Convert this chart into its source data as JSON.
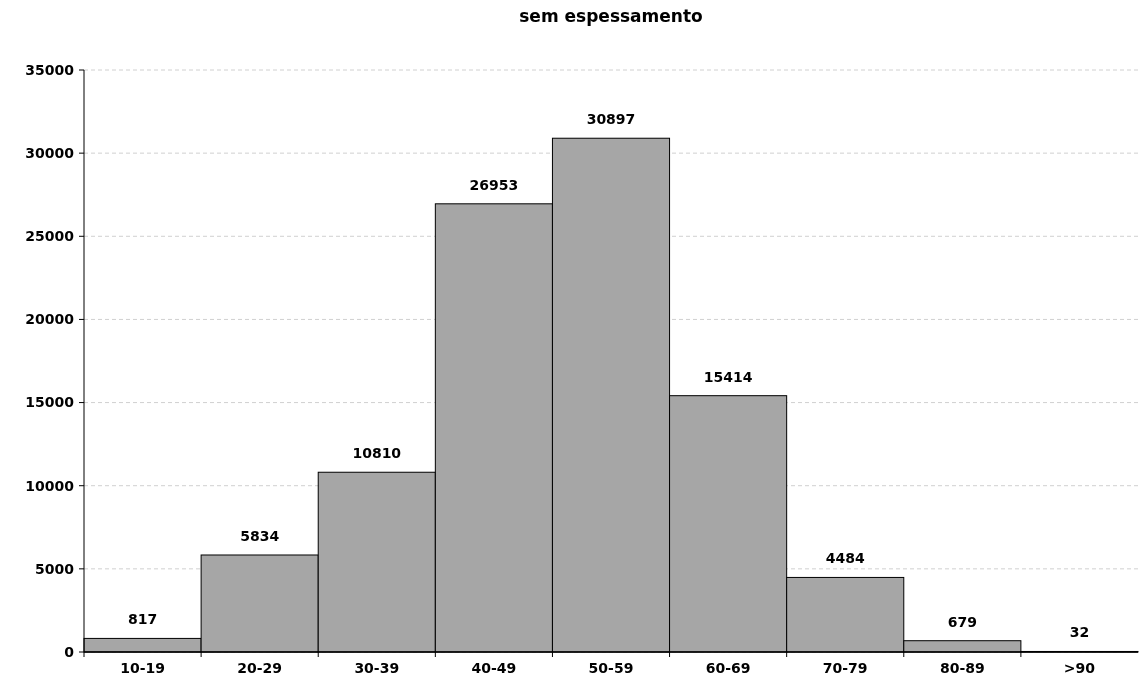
{
  "chart_data": {
    "type": "bar",
    "title": "sem espessamento",
    "categories": [
      "10-19",
      "20-29",
      "30-39",
      "40-49",
      "50-59",
      "60-69",
      "70-79",
      "80-89",
      ">90"
    ],
    "values": [
      817,
      5834,
      10810,
      26953,
      30897,
      15414,
      4484,
      679,
      32
    ],
    "color": "#a6a6a6",
    "ylim": [
      0,
      35000
    ],
    "yticks": [
      0,
      5000,
      10000,
      15000,
      20000,
      25000,
      30000,
      35000
    ],
    "grid": "y",
    "data_labels": true
  }
}
